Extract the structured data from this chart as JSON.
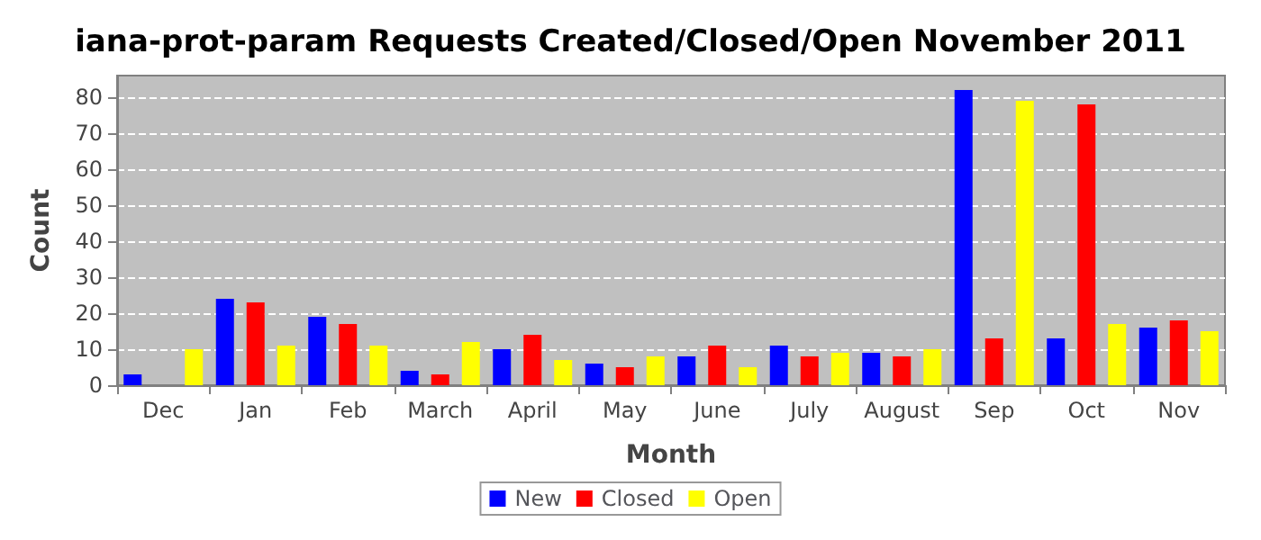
{
  "chart_data": {
    "type": "bar",
    "title": "iana-prot-param Requests Created/Closed/Open November 2011",
    "xlabel": "Month",
    "ylabel": "Count",
    "categories": [
      "Dec",
      "Jan",
      "Feb",
      "March",
      "April",
      "May",
      "June",
      "July",
      "August",
      "Sep",
      "Oct",
      "Nov"
    ],
    "series": [
      {
        "name": "New",
        "color": "#0000ff",
        "values": [
          3,
          24,
          19,
          4,
          10,
          6,
          8,
          11,
          9,
          82,
          13,
          16
        ]
      },
      {
        "name": "Closed",
        "color": "#ff0000",
        "values": [
          0,
          23,
          17,
          3,
          14,
          5,
          11,
          8,
          8,
          13,
          78,
          18
        ]
      },
      {
        "name": "Open",
        "color": "#ffff00",
        "values": [
          10,
          11,
          11,
          12,
          7,
          8,
          5,
          9,
          10,
          79,
          17,
          15
        ]
      }
    ],
    "ylim": [
      0,
      86
    ],
    "yticks": [
      0,
      10,
      20,
      30,
      40,
      50,
      60,
      70,
      80
    ],
    "grid": "y",
    "legend": "bottom"
  }
}
